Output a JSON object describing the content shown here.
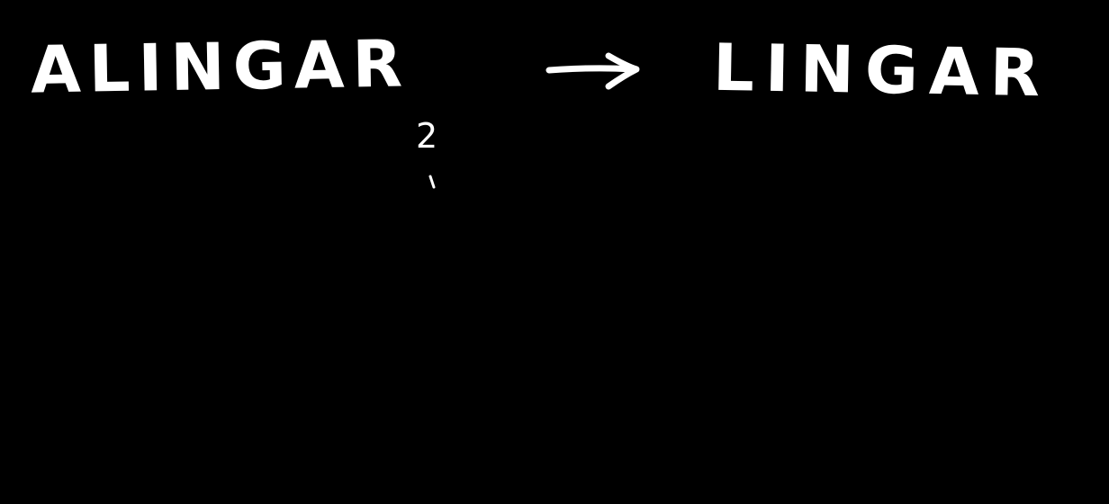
{
  "colors": {
    "background": "#000000",
    "ink": "#ffffff"
  },
  "board": {
    "left_word": "ALINGAR",
    "arrow_icon": "right-arrow-icon",
    "right_word": "LINGAR",
    "annotation": "2"
  }
}
